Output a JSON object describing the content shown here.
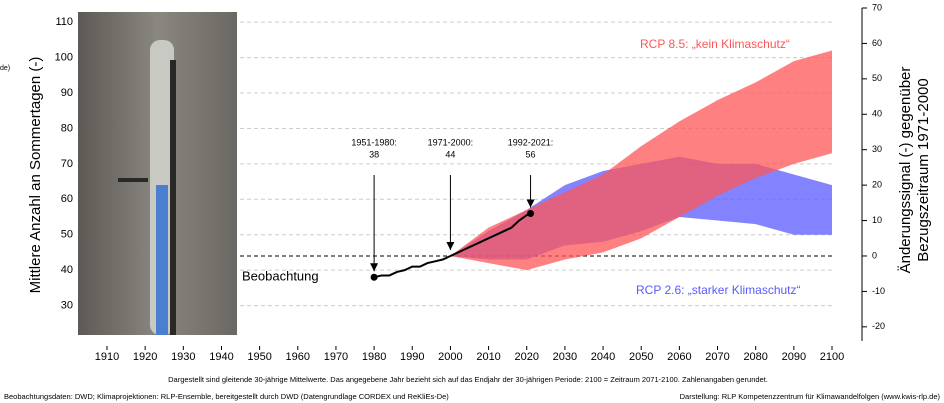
{
  "chart_data": {
    "type": "line",
    "cropped_label": "de)",
    "ylabel": "Mittlere Anzahl an Sommertagen (-)",
    "y2label": [
      "Änderungssignal (-) gegenüber",
      "Bezugszeitraum 1971-2000"
    ],
    "xlim": [
      1900,
      2100
    ],
    "xticks": [
      1910,
      1920,
      1930,
      1940,
      1950,
      1960,
      1970,
      1980,
      1990,
      2000,
      2010,
      2020,
      2030,
      2040,
      2050,
      2060,
      2070,
      2080,
      2090,
      2100
    ],
    "ylim": [
      20,
      114
    ],
    "yticks": [
      30,
      40,
      50,
      60,
      70,
      80,
      90,
      100,
      110
    ],
    "y2lim": [
      -24,
      70
    ],
    "y2ticks": [
      -20,
      -10,
      0,
      10,
      20,
      30,
      40,
      50,
      60,
      70
    ],
    "grid": true,
    "reference": 44,
    "series": [
      {
        "name": "Beobachtung",
        "color": "#000000",
        "x": [
          1980,
          1982,
          1984,
          1986,
          1988,
          1990,
          1992,
          1994,
          1996,
          1998,
          2000,
          2002,
          2004,
          2006,
          2008,
          2010,
          2012,
          2014,
          2016,
          2018,
          2020,
          2021
        ],
        "values": [
          38,
          38.5,
          38.5,
          39.5,
          40,
          41,
          41,
          42,
          42.5,
          43,
          44,
          45,
          46,
          47,
          48,
          49,
          50,
          51,
          52,
          54,
          55.5,
          56
        ]
      }
    ],
    "bands": [
      {
        "name": "RCP 2.6: „starker Klimaschutz“",
        "color": "#5a5aff",
        "x": [
          2000,
          2010,
          2020,
          2030,
          2040,
          2050,
          2060,
          2070,
          2080,
          2090,
          2100
        ],
        "upper": [
          44,
          51,
          57,
          64,
          68,
          70,
          72,
          70,
          70,
          67,
          64
        ],
        "lower": [
          44,
          43,
          43,
          47,
          48,
          51,
          55,
          54,
          53,
          50,
          50
        ]
      },
      {
        "name": "RCP 8.5: „kein Klimaschutz“",
        "color": "#ff5555",
        "x": [
          2000,
          2010,
          2020,
          2030,
          2040,
          2050,
          2060,
          2070,
          2080,
          2090,
          2100
        ],
        "upper": [
          44,
          52,
          57,
          62,
          67,
          75,
          82,
          88,
          93,
          99,
          102
        ],
        "lower": [
          44,
          42,
          40,
          43,
          45,
          49,
          55,
          61,
          66,
          70,
          73
        ]
      }
    ],
    "annotations": [
      {
        "label": "1951-1980:",
        "value": 38,
        "x": 1980
      },
      {
        "label": "1971-2000:",
        "value": 44,
        "x": 2000
      },
      {
        "label": "1992-2021:",
        "value": 56,
        "x": 2021
      }
    ],
    "footnote": "Dargestellt sind gleitende 30-jährige Mittelwerte. Das angegebene Jahr bezieht sich auf das Endjahr der 30-jährigen Periode: 2100 = Zeitraum 2071-2100. Zahlenangaben gerundet.",
    "source_left": "Beobachtungsdaten: DWD; Klimaprojektionen: RLP-Ensemble, bereitgestellt durch DWD (Datengrundlage CORDEX und ReKliEs-De)",
    "source_right": "Darstellung: RLP Kompetenzzentrum für Klimawandelfolgen (www.kwis-rlp.de)"
  }
}
